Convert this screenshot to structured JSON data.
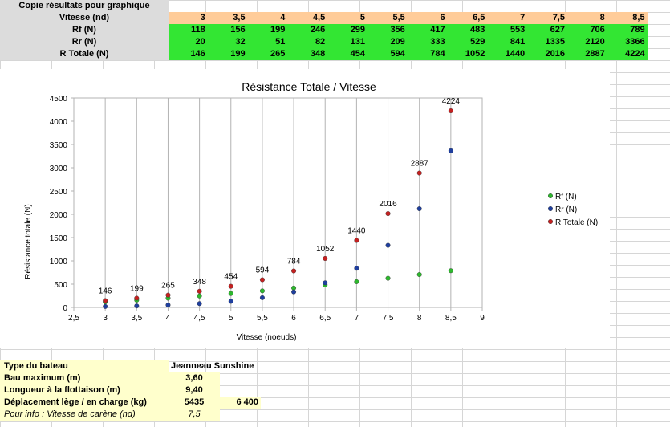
{
  "table": {
    "caption": "Copie résultats pour graphique",
    "vitesse_label": "Vitesse (nd)",
    "vitesse": [
      "3",
      "3,5",
      "4",
      "4,5",
      "5",
      "5,5",
      "6",
      "6,5",
      "7",
      "7,5",
      "8",
      "8,5"
    ],
    "rf_label": "Rf (N)",
    "rf": [
      "118",
      "156",
      "199",
      "246",
      "299",
      "356",
      "417",
      "483",
      "553",
      "627",
      "706",
      "789"
    ],
    "rr_label": "Rr (N)",
    "rr": [
      "20",
      "32",
      "51",
      "82",
      "131",
      "209",
      "333",
      "529",
      "841",
      "1335",
      "2120",
      "3366"
    ],
    "rt_label": "R Totale (N)",
    "rt": [
      "146",
      "199",
      "265",
      "348",
      "454",
      "594",
      "784",
      "1052",
      "1440",
      "2016",
      "2887",
      "4224"
    ]
  },
  "colors": {
    "orange_row": "#ffcc99",
    "green_rows": "#33e633",
    "info_yellow": "#ffffcc",
    "series_rf": "#2db82d",
    "series_rr": "#1f3f9f",
    "series_rt": "#c42020"
  },
  "chart_data": {
    "type": "scatter",
    "title": "Résistance Totale / Vitesse",
    "xlabel": "Vitesse (noeuds)",
    "ylabel": "Résistance totale (N)",
    "xlim": [
      2.5,
      9
    ],
    "ylim": [
      0,
      4500
    ],
    "xticks": [
      "2,5",
      "3",
      "3,5",
      "4",
      "4,5",
      "5",
      "5,5",
      "6",
      "6,5",
      "7",
      "7,5",
      "8",
      "8,5",
      "9"
    ],
    "yticks": [
      "0",
      "500",
      "1000",
      "1500",
      "2000",
      "2500",
      "3000",
      "3500",
      "4000",
      "4500"
    ],
    "grid": "vertical",
    "legend_position": "right",
    "x": [
      3,
      3.5,
      4,
      4.5,
      5,
      5.5,
      6,
      6.5,
      7,
      7.5,
      8,
      8.5
    ],
    "series": [
      {
        "name": "Rf (N)",
        "values": [
          118,
          156,
          199,
          246,
          299,
          356,
          417,
          483,
          553,
          627,
          706,
          789
        ]
      },
      {
        "name": "Rr (N)",
        "values": [
          20,
          32,
          51,
          82,
          131,
          209,
          333,
          529,
          841,
          1335,
          2120,
          3366
        ]
      },
      {
        "name": "R Totale (N)",
        "values": [
          146,
          199,
          265,
          348,
          454,
          594,
          784,
          1052,
          1440,
          2016,
          2887,
          4224
        ],
        "labels": [
          "146",
          "199",
          "265",
          "348",
          "454",
          "594",
          "784",
          "1052",
          "1440",
          "2016",
          "2887",
          "4224"
        ]
      }
    ]
  },
  "info": {
    "type_label": "Type du bateau",
    "type_value": "Jeanneau Sunshine",
    "bau_label": "Bau maximum (m)",
    "bau_value": "3,60",
    "flot_label": "Longueur à la flottaison (m)",
    "flot_value": "9,40",
    "depl_label": "Déplacement lège / en charge (kg)",
    "depl_value1": "5435",
    "depl_value2": "6 400",
    "carene_label": "Pour info : Vitesse de carène (nd)",
    "carene_value": "7,5"
  }
}
